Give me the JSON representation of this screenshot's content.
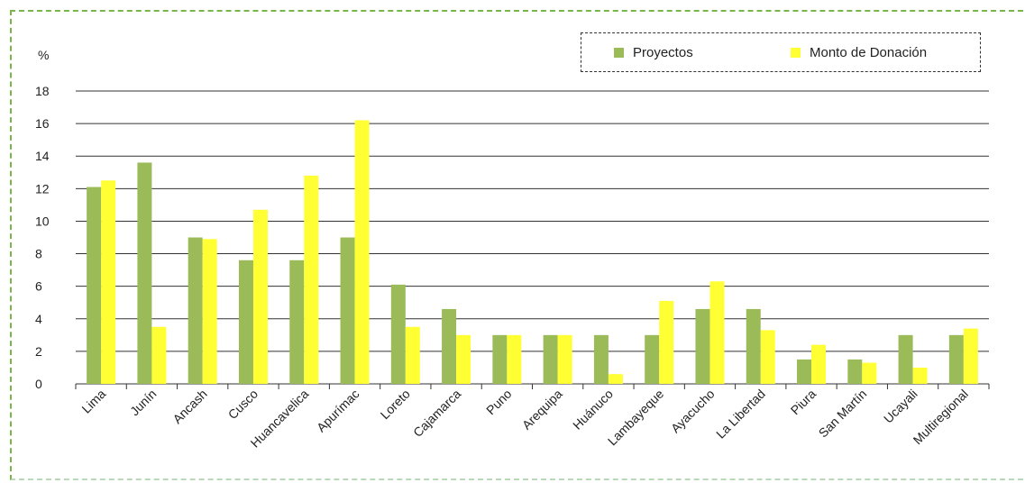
{
  "chart_data": {
    "type": "bar",
    "ylabel": "%",
    "ylim": [
      0,
      18
    ],
    "yticks": [
      0,
      2,
      4,
      6,
      8,
      10,
      12,
      14,
      16,
      18
    ],
    "grid": true,
    "legend_position": "top-right",
    "categories": [
      "Lima",
      "Junín",
      "Ancash",
      "Cusco",
      "Huancavelica",
      "Apurímac",
      "Loreto",
      "Cajamarca",
      "Puno",
      "Arequipa",
      "Huánuco",
      "Lambayeque",
      "Ayacucho",
      "La Libertad",
      "Piura",
      "San Martín",
      "Ucayali",
      "Multiregional"
    ],
    "series": [
      {
        "name": "Proyectos",
        "color": "#9bbb59",
        "values": [
          12.1,
          13.6,
          9.0,
          7.6,
          7.6,
          9.0,
          6.1,
          4.6,
          3.0,
          3.0,
          3.0,
          3.0,
          4.6,
          4.6,
          1.5,
          1.5,
          3.0,
          3.0
        ]
      },
      {
        "name": "Monto de Donación",
        "color": "#ffff33",
        "values": [
          12.5,
          3.5,
          8.9,
          10.7,
          12.8,
          16.2,
          3.5,
          3.0,
          3.0,
          3.0,
          0.6,
          5.1,
          6.3,
          3.3,
          2.4,
          1.3,
          1.0,
          3.4
        ]
      }
    ]
  }
}
